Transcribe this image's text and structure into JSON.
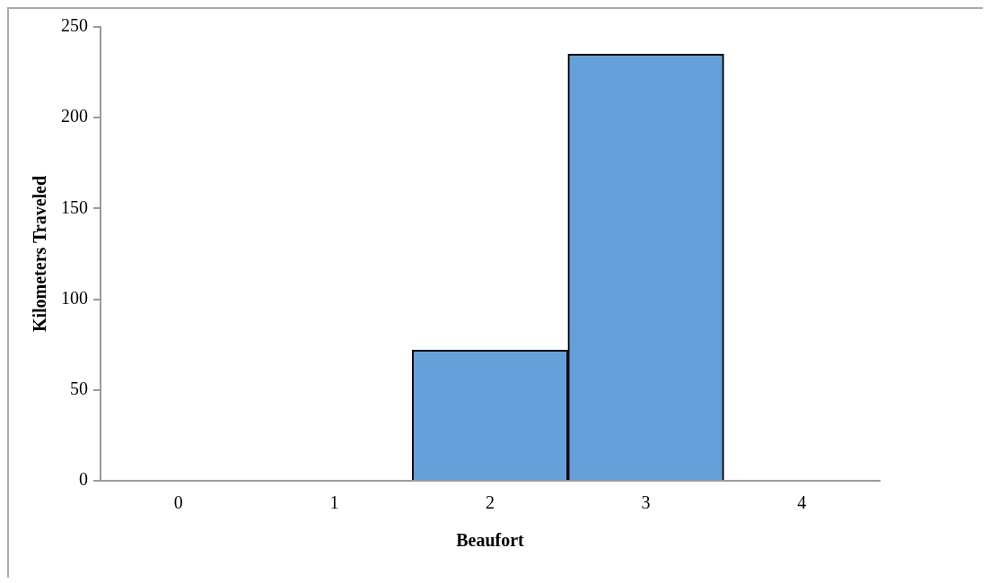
{
  "chart_data": {
    "type": "bar",
    "xlabel": "Beaufort",
    "ylabel": "Kilometers Traveled",
    "categories": [
      "0",
      "1",
      "2",
      "3",
      "4"
    ],
    "values": [
      0,
      0,
      72,
      235,
      0
    ],
    "color": "#65a0db",
    "ylim": [
      0,
      250
    ],
    "yticks": [
      0,
      50,
      100,
      150,
      200,
      250
    ],
    "grid": false,
    "legend": false
  }
}
